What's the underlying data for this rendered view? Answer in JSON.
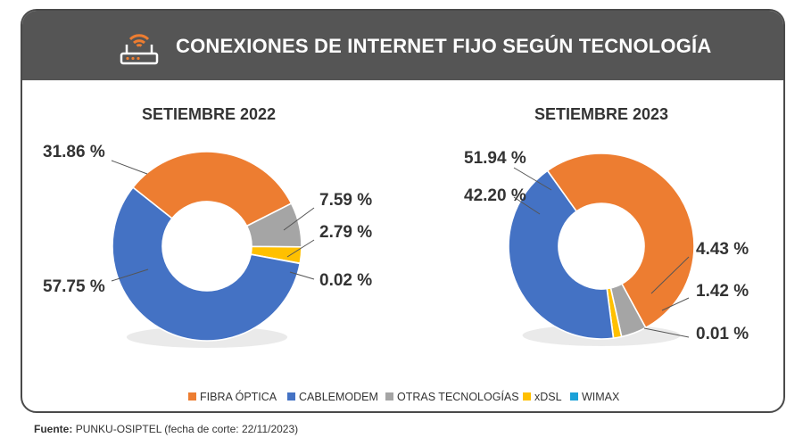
{
  "header": {
    "title": "CONEXIONES DE INTERNET FIJO SEGÚN TECNOLOGÍA",
    "icon": "wifi-router-icon"
  },
  "colors": {
    "header_bg": "#555555",
    "fibra": "#ED7D31",
    "cablemodem": "#4472C4",
    "otras": "#A5A5A5",
    "xdsl": "#FFC000",
    "wimax": "#1BA1D8"
  },
  "chart_data": [
    {
      "type": "pie",
      "variant": "donut",
      "title": "SETIEMBRE 2022",
      "categories": [
        "FIBRA ÓPTICA",
        "CABLEMODEM",
        "OTRAS TECNOLOGÍAS",
        "xDSL",
        "WIMAX"
      ],
      "values": [
        31.86,
        57.75,
        7.59,
        2.79,
        0.02
      ],
      "labels": [
        "31.86 %",
        "57.75 %",
        "7.59 %",
        "2.79 %",
        "0.02 %"
      ]
    },
    {
      "type": "pie",
      "variant": "donut",
      "title": "SETIEMBRE 2023",
      "categories": [
        "FIBRA ÓPTICA",
        "CABLEMODEM",
        "OTRAS TECNOLOGÍAS",
        "xDSL",
        "WIMAX"
      ],
      "values": [
        51.94,
        42.2,
        4.43,
        1.42,
        0.01
      ],
      "labels": [
        "51.94 %",
        "42.20 %",
        "4.43 %",
        "1.42 %",
        "0.01 %"
      ]
    }
  ],
  "legend": {
    "items": [
      "FIBRA ÓPTICA",
      "CABLEMODEM",
      "OTRAS TECNOLOGÍAS",
      "xDSL",
      "WIMAX"
    ],
    "placement": "bottom"
  },
  "footer": {
    "label": "Fuente:",
    "text": "PUNKU-OSIPTEL (fecha de corte: 22/11/2023)"
  }
}
